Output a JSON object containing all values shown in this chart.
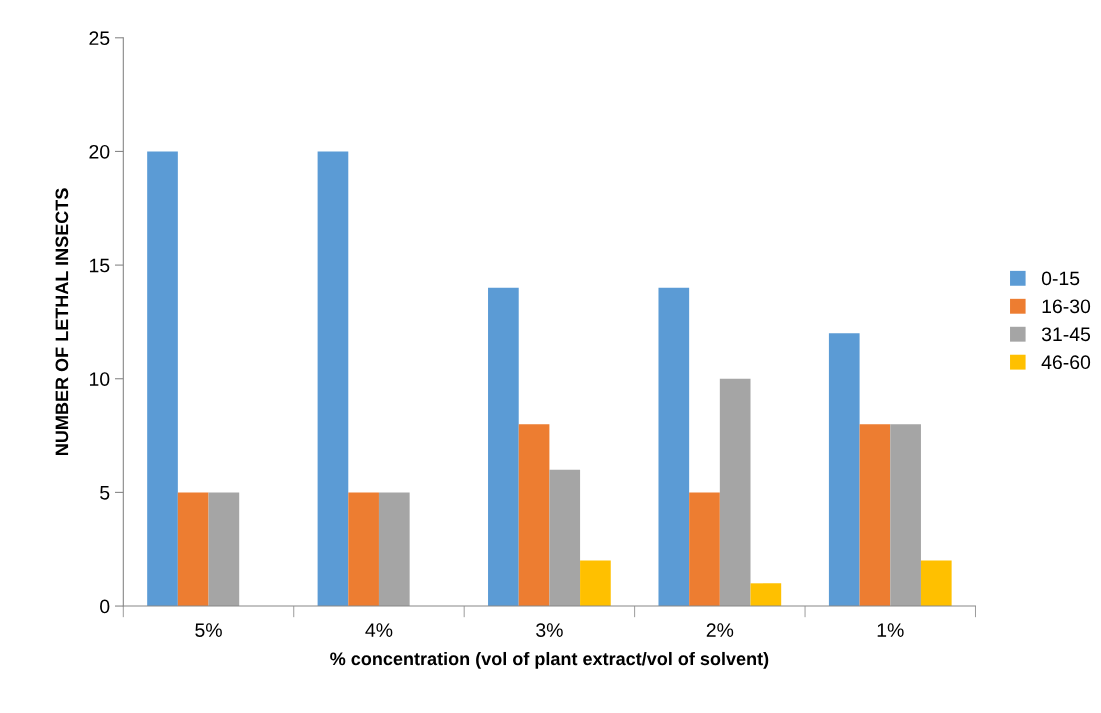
{
  "chart_data": {
    "type": "bar",
    "xlabel": "% concentration (vol of plant extract/vol of solvent)",
    "ylabel": "NUMBER OF LETHAL INSECTS",
    "categories": [
      "5%",
      "4%",
      "3%",
      "2%",
      "1%"
    ],
    "series": [
      {
        "name": "0-15",
        "color": "#5b9bd5",
        "values": [
          20,
          20,
          14,
          14,
          12
        ]
      },
      {
        "name": "16-30",
        "color": "#ed7d31",
        "values": [
          5,
          5,
          8,
          5,
          8
        ]
      },
      {
        "name": "31-45",
        "color": "#a5a5a5",
        "values": [
          5,
          5,
          6,
          10,
          8
        ]
      },
      {
        "name": "46-60",
        "color": "#ffc000",
        "values": [
          0,
          0,
          2,
          1,
          2
        ]
      }
    ],
    "ylim": [
      0,
      25
    ],
    "yticks": [
      0,
      5,
      10,
      15,
      20,
      25
    ],
    "grid": false,
    "legend": "right"
  }
}
